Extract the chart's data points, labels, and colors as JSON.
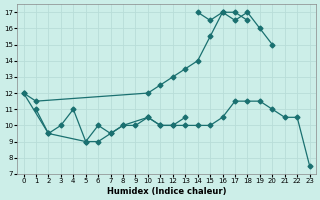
{
  "xlabel": "Humidex (Indice chaleur)",
  "bg_color": "#cceee8",
  "grid_color": "#b8ddd8",
  "line_color": "#1a7070",
  "ylim": [
    7,
    17.5
  ],
  "xlim": [
    -0.5,
    23.5
  ],
  "yticks": [
    7,
    8,
    9,
    10,
    11,
    12,
    13,
    14,
    15,
    16,
    17
  ],
  "xticks": [
    0,
    1,
    2,
    3,
    4,
    5,
    6,
    7,
    8,
    9,
    10,
    11,
    12,
    13,
    14,
    15,
    16,
    17,
    18,
    19,
    20,
    21,
    22,
    23
  ],
  "lines": [
    {
      "x": [
        0,
        1,
        10,
        11,
        12,
        13,
        14,
        15,
        16,
        17,
        18,
        19,
        20
      ],
      "y": [
        12,
        11.5,
        12,
        12.5,
        13,
        13.5,
        14,
        15.5,
        17,
        16.5,
        17,
        16,
        15
      ]
    },
    {
      "x": [
        14,
        15,
        16,
        17,
        18
      ],
      "y": [
        17,
        16.5,
        17,
        17,
        16.5
      ]
    },
    {
      "x": [
        1,
        2,
        3,
        4,
        5,
        6,
        7,
        8,
        9,
        10,
        11,
        12,
        13
      ],
      "y": [
        11,
        9.5,
        10,
        11,
        9,
        10,
        9.5,
        10,
        10,
        10.5,
        10,
        10,
        10.5
      ]
    },
    {
      "x": [
        0,
        2,
        5,
        6,
        7,
        8,
        10,
        11,
        12,
        13,
        14,
        15,
        16,
        17,
        18,
        19,
        20,
        21,
        22,
        23
      ],
      "y": [
        12,
        9.5,
        9,
        9,
        9.5,
        10,
        10.5,
        10,
        10,
        10,
        10,
        10,
        10.5,
        11.5,
        11.5,
        11.5,
        11,
        10.5,
        10.5,
        7.5
      ]
    }
  ]
}
